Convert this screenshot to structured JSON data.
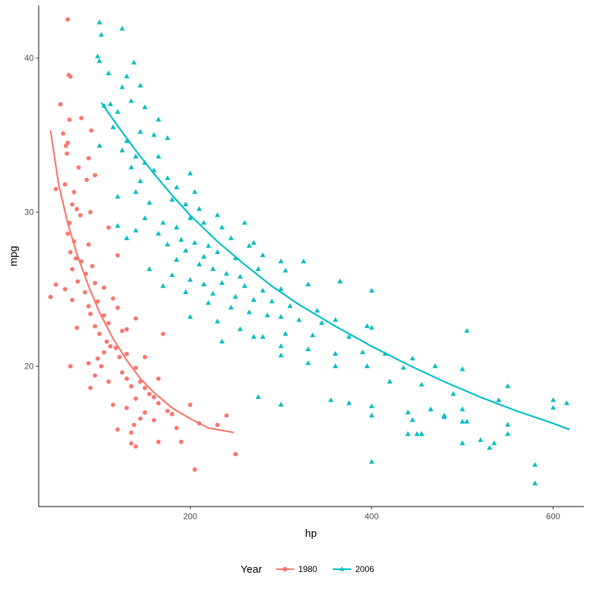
{
  "chart_data": {
    "type": "scatter",
    "title": "",
    "xlabel": "hp",
    "ylabel": "mpg",
    "xlim": [
      33,
      634
    ],
    "ylim": [
      10.9,
      43.4
    ],
    "x_ticks": [
      200,
      400,
      600
    ],
    "y_ticks": [
      20,
      30,
      40
    ],
    "grid": false,
    "legend": {
      "title": "Year",
      "position": "bottom"
    },
    "series": [
      {
        "name": "1980",
        "color": "#F8766D",
        "marker": "circle",
        "points": [
          [
            65,
            42.5
          ],
          [
            66,
            38.9
          ],
          [
            68,
            38.8
          ],
          [
            80,
            36.1
          ],
          [
            57,
            37.0
          ],
          [
            67,
            36.0
          ],
          [
            91,
            35.3
          ],
          [
            60,
            35.1
          ],
          [
            65,
            34.5
          ],
          [
            63,
            34.3
          ],
          [
            64,
            33.8
          ],
          [
            88,
            33.5
          ],
          [
            77,
            32.9
          ],
          [
            95,
            32.4
          ],
          [
            86,
            32.1
          ],
          [
            52,
            31.5
          ],
          [
            62,
            31.8
          ],
          [
            72,
            31.3
          ],
          [
            70,
            30.5
          ],
          [
            75,
            30.2
          ],
          [
            90,
            30.0
          ],
          [
            79,
            29.8
          ],
          [
            67,
            29.3
          ],
          [
            110,
            29.0
          ],
          [
            65,
            28.6
          ],
          [
            72,
            28.1
          ],
          [
            88,
            27.9
          ],
          [
            68,
            27.4
          ],
          [
            74,
            27.0
          ],
          [
            120,
            27.2
          ],
          [
            80,
            26.8
          ],
          [
            92,
            26.5
          ],
          [
            70,
            26.3
          ],
          [
            85,
            26.0
          ],
          [
            76,
            25.5
          ],
          [
            95,
            25.4
          ],
          [
            105,
            25.1
          ],
          [
            52,
            25.3
          ],
          [
            62,
            25.0
          ],
          [
            84,
            24.8
          ],
          [
            46,
            24.5
          ],
          [
            70,
            24.3
          ],
          [
            115,
            24.4
          ],
          [
            98,
            24.2
          ],
          [
            88,
            23.9
          ],
          [
            120,
            23.8
          ],
          [
            90,
            23.4
          ],
          [
            105,
            23.3
          ],
          [
            140,
            23.1
          ],
          [
            110,
            22.8
          ],
          [
            75,
            22.5
          ],
          [
            95,
            22.6
          ],
          [
            130,
            22.4
          ],
          [
            100,
            22.1
          ],
          [
            125,
            22.3
          ],
          [
            170,
            22.1
          ],
          [
            108,
            21.6
          ],
          [
            112,
            21.3
          ],
          [
            118,
            21.2
          ],
          [
            105,
            20.9
          ],
          [
            130,
            20.8
          ],
          [
            98,
            20.5
          ],
          [
            122,
            20.6
          ],
          [
            150,
            20.6
          ],
          [
            88,
            20.2
          ],
          [
            102,
            20.0
          ],
          [
            68,
            20.0
          ],
          [
            140,
            19.9
          ],
          [
            125,
            19.6
          ],
          [
            95,
            19.4
          ],
          [
            130,
            19.2
          ],
          [
            145,
            19.0
          ],
          [
            165,
            19.2
          ],
          [
            110,
            19.0
          ],
          [
            135,
            18.7
          ],
          [
            150,
            18.6
          ],
          [
            90,
            18.6
          ],
          [
            155,
            18.2
          ],
          [
            160,
            18.0
          ],
          [
            140,
            17.9
          ],
          [
            165,
            17.6
          ],
          [
            115,
            17.5
          ],
          [
            130,
            17.3
          ],
          [
            150,
            17.0
          ],
          [
            175,
            17.1
          ],
          [
            180,
            16.9
          ],
          [
            145,
            16.6
          ],
          [
            138,
            16.2
          ],
          [
            160,
            16.5
          ],
          [
            185,
            16.0
          ],
          [
            210,
            16.3
          ],
          [
            230,
            16.2
          ],
          [
            120,
            15.9
          ],
          [
            135,
            15.7
          ],
          [
            165,
            15.1
          ],
          [
            190,
            15.1
          ],
          [
            250,
            14.3
          ],
          [
            135,
            15.0
          ],
          [
            140,
            14.8
          ],
          [
            205,
            13.3
          ],
          [
            200,
            17.5
          ],
          [
            240,
            16.8
          ]
        ],
        "fit": [
          [
            46,
            35.3
          ],
          [
            55,
            31.8
          ],
          [
            65,
            29.3
          ],
          [
            75,
            27.3
          ],
          [
            88,
            25.2
          ],
          [
            100,
            23.5
          ],
          [
            115,
            21.8
          ],
          [
            130,
            20.4
          ],
          [
            145,
            19.2
          ],
          [
            160,
            18.3
          ],
          [
            180,
            17.3
          ],
          [
            200,
            16.6
          ],
          [
            220,
            16.0
          ],
          [
            248,
            15.7
          ]
        ]
      },
      {
        "name": "2006",
        "color": "#00BFC4",
        "marker": "triangle",
        "points": [
          [
            100,
            42.3
          ],
          [
            125,
            41.9
          ],
          [
            102,
            41.5
          ],
          [
            98,
            40.1
          ],
          [
            100,
            39.8
          ],
          [
            138,
            39.7
          ],
          [
            110,
            39.0
          ],
          [
            130,
            38.8
          ],
          [
            125,
            38.1
          ],
          [
            145,
            38.2
          ],
          [
            112,
            37.0
          ],
          [
            120,
            36.5
          ],
          [
            135,
            37.2
          ],
          [
            150,
            36.8
          ],
          [
            165,
            36.0
          ],
          [
            105,
            36.9
          ],
          [
            115,
            35.5
          ],
          [
            145,
            35.2
          ],
          [
            130,
            34.6
          ],
          [
            160,
            35.0
          ],
          [
            175,
            34.8
          ],
          [
            125,
            34.0
          ],
          [
            140,
            33.6
          ],
          [
            150,
            33.2
          ],
          [
            165,
            33.6
          ],
          [
            100,
            34.3
          ],
          [
            135,
            32.9
          ],
          [
            160,
            32.7
          ],
          [
            175,
            32.2
          ],
          [
            200,
            32.5
          ],
          [
            145,
            32.0
          ],
          [
            185,
            31.6
          ],
          [
            205,
            31.3
          ],
          [
            140,
            31.3
          ],
          [
            120,
            31.0
          ],
          [
            155,
            30.6
          ],
          [
            180,
            30.8
          ],
          [
            195,
            30.5
          ],
          [
            210,
            30.2
          ],
          [
            230,
            29.8
          ],
          [
            150,
            29.6
          ],
          [
            170,
            29.3
          ],
          [
            185,
            29.0
          ],
          [
            200,
            29.6
          ],
          [
            215,
            29.3
          ],
          [
            235,
            29.0
          ],
          [
            260,
            29.3
          ],
          [
            120,
            29.1
          ],
          [
            140,
            28.8
          ],
          [
            165,
            28.6
          ],
          [
            190,
            28.2
          ],
          [
            205,
            28.0
          ],
          [
            220,
            27.8
          ],
          [
            245,
            28.3
          ],
          [
            270,
            28.0
          ],
          [
            130,
            28.3
          ],
          [
            175,
            27.9
          ],
          [
            195,
            27.5
          ],
          [
            215,
            27.1
          ],
          [
            230,
            27.4
          ],
          [
            250,
            27.0
          ],
          [
            265,
            27.8
          ],
          [
            280,
            27.2
          ],
          [
            300,
            26.8
          ],
          [
            325,
            26.8
          ],
          [
            185,
            26.9
          ],
          [
            210,
            26.6
          ],
          [
            225,
            26.3
          ],
          [
            240,
            26.0
          ],
          [
            255,
            25.8
          ],
          [
            275,
            26.3
          ],
          [
            305,
            26.2
          ],
          [
            155,
            26.3
          ],
          [
            180,
            25.9
          ],
          [
            200,
            25.6
          ],
          [
            215,
            25.3
          ],
          [
            235,
            25.4
          ],
          [
            260,
            25.2
          ],
          [
            280,
            24.9
          ],
          [
            300,
            25.0
          ],
          [
            330,
            25.3
          ],
          [
            365,
            25.5
          ],
          [
            170,
            25.2
          ],
          [
            195,
            24.8
          ],
          [
            225,
            24.7
          ],
          [
            250,
            24.5
          ],
          [
            270,
            24.3
          ],
          [
            290,
            24.2
          ],
          [
            310,
            23.9
          ],
          [
            340,
            23.6
          ],
          [
            400,
            24.9
          ],
          [
            220,
            24.1
          ],
          [
            245,
            23.8
          ],
          [
            265,
            23.5
          ],
          [
            285,
            23.3
          ],
          [
            300,
            23.2
          ],
          [
            320,
            23.0
          ],
          [
            345,
            22.8
          ],
          [
            360,
            23.0
          ],
          [
            395,
            22.6
          ],
          [
            200,
            23.2
          ],
          [
            230,
            22.9
          ],
          [
            255,
            22.4
          ],
          [
            280,
            21.9
          ],
          [
            305,
            22.1
          ],
          [
            335,
            22.0
          ],
          [
            375,
            21.9
          ],
          [
            400,
            22.5
          ],
          [
            505,
            22.3
          ],
          [
            235,
            21.6
          ],
          [
            270,
            21.9
          ],
          [
            300,
            21.3
          ],
          [
            330,
            21.1
          ],
          [
            360,
            20.8
          ],
          [
            390,
            20.9
          ],
          [
            415,
            20.8
          ],
          [
            445,
            20.5
          ],
          [
            300,
            20.7
          ],
          [
            330,
            20.2
          ],
          [
            360,
            20.0
          ],
          [
            395,
            20.0
          ],
          [
            435,
            19.9
          ],
          [
            470,
            20.0
          ],
          [
            500,
            19.8
          ],
          [
            420,
            19.0
          ],
          [
            455,
            18.8
          ],
          [
            490,
            18.2
          ],
          [
            550,
            18.7
          ],
          [
            275,
            18.0
          ],
          [
            300,
            17.5
          ],
          [
            355,
            17.8
          ],
          [
            375,
            17.6
          ],
          [
            400,
            17.4
          ],
          [
            440,
            17.0
          ],
          [
            465,
            17.2
          ],
          [
            500,
            17.2
          ],
          [
            540,
            17.8
          ],
          [
            600,
            17.8
          ],
          [
            615,
            17.6
          ],
          [
            400,
            16.8
          ],
          [
            445,
            16.5
          ],
          [
            480,
            16.7
          ],
          [
            500,
            16.4
          ],
          [
            550,
            16.2
          ],
          [
            600,
            17.3
          ],
          [
            440,
            15.6
          ],
          [
            455,
            15.6
          ],
          [
            500,
            15.0
          ],
          [
            520,
            15.2
          ],
          [
            550,
            15.6
          ],
          [
            530,
            14.7
          ],
          [
            400,
            13.8
          ],
          [
            580,
            13.6
          ],
          [
            580,
            12.4
          ],
          [
            450,
            15.6
          ],
          [
            480,
            16.8
          ],
          [
            505,
            16.4
          ],
          [
            535,
            15.0
          ]
        ],
        "fit": [
          [
            102,
            37.1
          ],
          [
            120,
            35.6
          ],
          [
            140,
            34.0
          ],
          [
            160,
            32.5
          ],
          [
            180,
            31.1
          ],
          [
            200,
            29.8
          ],
          [
            230,
            28.1
          ],
          [
            260,
            26.6
          ],
          [
            290,
            25.2
          ],
          [
            320,
            24.0
          ],
          [
            360,
            22.6
          ],
          [
            400,
            21.3
          ],
          [
            440,
            20.1
          ],
          [
            480,
            19.0
          ],
          [
            520,
            18.0
          ],
          [
            560,
            17.1
          ],
          [
            600,
            16.3
          ],
          [
            618,
            15.9
          ]
        ]
      }
    ]
  }
}
